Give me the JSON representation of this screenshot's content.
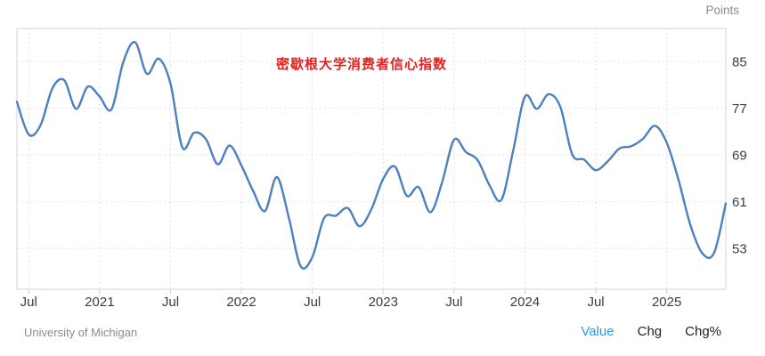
{
  "header": {
    "unit_label": "Points"
  },
  "annotation": {
    "title": "密歇根大学消费者信心指数",
    "color": "#ee1c1c"
  },
  "footer": {
    "source": "University of Michigan",
    "links": [
      {
        "label": "Value",
        "color": "#2d96f2"
      },
      {
        "label": "Chg",
        "color": "#222222"
      },
      {
        "label": "Chg%",
        "color": "#222222"
      }
    ]
  },
  "chart_data": {
    "type": "line",
    "title": "密歇根大学消费者信心指数",
    "ylabel": "Points",
    "line_color": "#4d80bf",
    "grid": "dotted",
    "grid_color": "#e2e2e2",
    "border_color": "#d4d4d4",
    "axis_label_color": "#3c3c3c",
    "ylim": [
      46.0,
      90.66
    ],
    "y_ticks": [
      85,
      77,
      69,
      61,
      53
    ],
    "x": [
      "2020-06",
      "2020-07",
      "2020-08",
      "2020-09",
      "2020-10",
      "2020-11",
      "2020-12",
      "2021-01",
      "2021-02",
      "2021-03",
      "2021-04",
      "2021-05",
      "2021-06",
      "2021-07",
      "2021-08",
      "2021-09",
      "2021-10",
      "2021-11",
      "2021-12",
      "2022-01",
      "2022-02",
      "2022-03",
      "2022-04",
      "2022-05",
      "2022-06",
      "2022-07",
      "2022-08",
      "2022-09",
      "2022-10",
      "2022-11",
      "2022-12",
      "2023-01",
      "2023-02",
      "2023-03",
      "2023-04",
      "2023-05",
      "2023-06",
      "2023-07",
      "2023-08",
      "2023-09",
      "2023-10",
      "2023-11",
      "2023-12",
      "2024-01",
      "2024-02",
      "2024-03",
      "2024-04",
      "2024-05",
      "2024-06",
      "2024-07",
      "2024-08",
      "2024-09",
      "2024-10",
      "2024-11",
      "2024-12",
      "2025-01",
      "2025-02",
      "2025-03",
      "2025-04",
      "2025-05",
      "2025-06"
    ],
    "values": [
      78.1,
      72.5,
      74.1,
      80.4,
      81.8,
      76.9,
      80.7,
      79.0,
      76.8,
      84.9,
      88.3,
      82.9,
      85.5,
      81.2,
      70.3,
      72.8,
      71.7,
      67.4,
      70.6,
      67.2,
      62.8,
      59.4,
      65.2,
      58.4,
      50.0,
      51.5,
      58.2,
      58.6,
      59.9,
      56.8,
      59.7,
      64.9,
      67.0,
      62.0,
      63.5,
      59.2,
      64.4,
      71.6,
      69.5,
      68.1,
      63.8,
      61.3,
      69.7,
      79.0,
      76.9,
      79.4,
      77.2,
      69.1,
      68.2,
      66.4,
      67.9,
      70.1,
      70.5,
      71.8,
      74.0,
      71.1,
      64.7,
      57.0,
      52.2,
      52.2,
      60.7
    ],
    "x_ticks": [
      {
        "index": 1,
        "label": "Jul"
      },
      {
        "index": 7,
        "label": "2021"
      },
      {
        "index": 13,
        "label": "Jul"
      },
      {
        "index": 19,
        "label": "2022"
      },
      {
        "index": 25,
        "label": "Jul"
      },
      {
        "index": 31,
        "label": "2023"
      },
      {
        "index": 37,
        "label": "Jul"
      },
      {
        "index": 43,
        "label": "2024"
      },
      {
        "index": 49,
        "label": "Jul"
      },
      {
        "index": 55,
        "label": "2025"
      }
    ]
  }
}
